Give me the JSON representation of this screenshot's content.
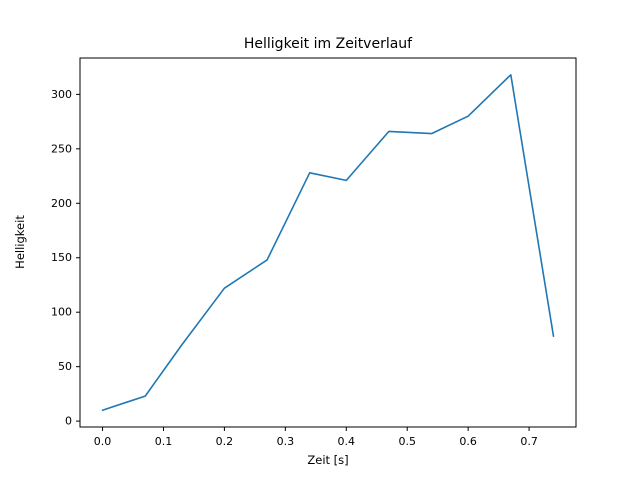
{
  "figure": {
    "background": "#ffffff"
  },
  "chart_data": {
    "type": "line",
    "title": "Helligkeit im Zeitverlauf",
    "xlabel": "Zeit [s]",
    "ylabel": "Helligkeit",
    "x": [
      0.0,
      0.07,
      0.13,
      0.2,
      0.27,
      0.34,
      0.4,
      0.47,
      0.54,
      0.6,
      0.67,
      0.74
    ],
    "y": [
      10,
      23,
      70,
      122,
      148,
      228,
      221,
      266,
      264,
      280,
      318,
      78
    ],
    "xlim": [
      -0.037,
      0.777
    ],
    "ylim": [
      -5.4,
      333.4
    ],
    "xticks": [
      0.0,
      0.1,
      0.2,
      0.3,
      0.4,
      0.5,
      0.6,
      0.7
    ],
    "xtick_labels": [
      "0.0",
      "0.1",
      "0.2",
      "0.3",
      "0.4",
      "0.5",
      "0.6",
      "0.7"
    ],
    "yticks": [
      0,
      50,
      100,
      150,
      200,
      250,
      300
    ],
    "ytick_labels": [
      "0",
      "50",
      "100",
      "150",
      "200",
      "250",
      "300"
    ],
    "line_color": "#1f77b4",
    "axis_color": "#000000",
    "grid": false,
    "legend_position": "none"
  }
}
